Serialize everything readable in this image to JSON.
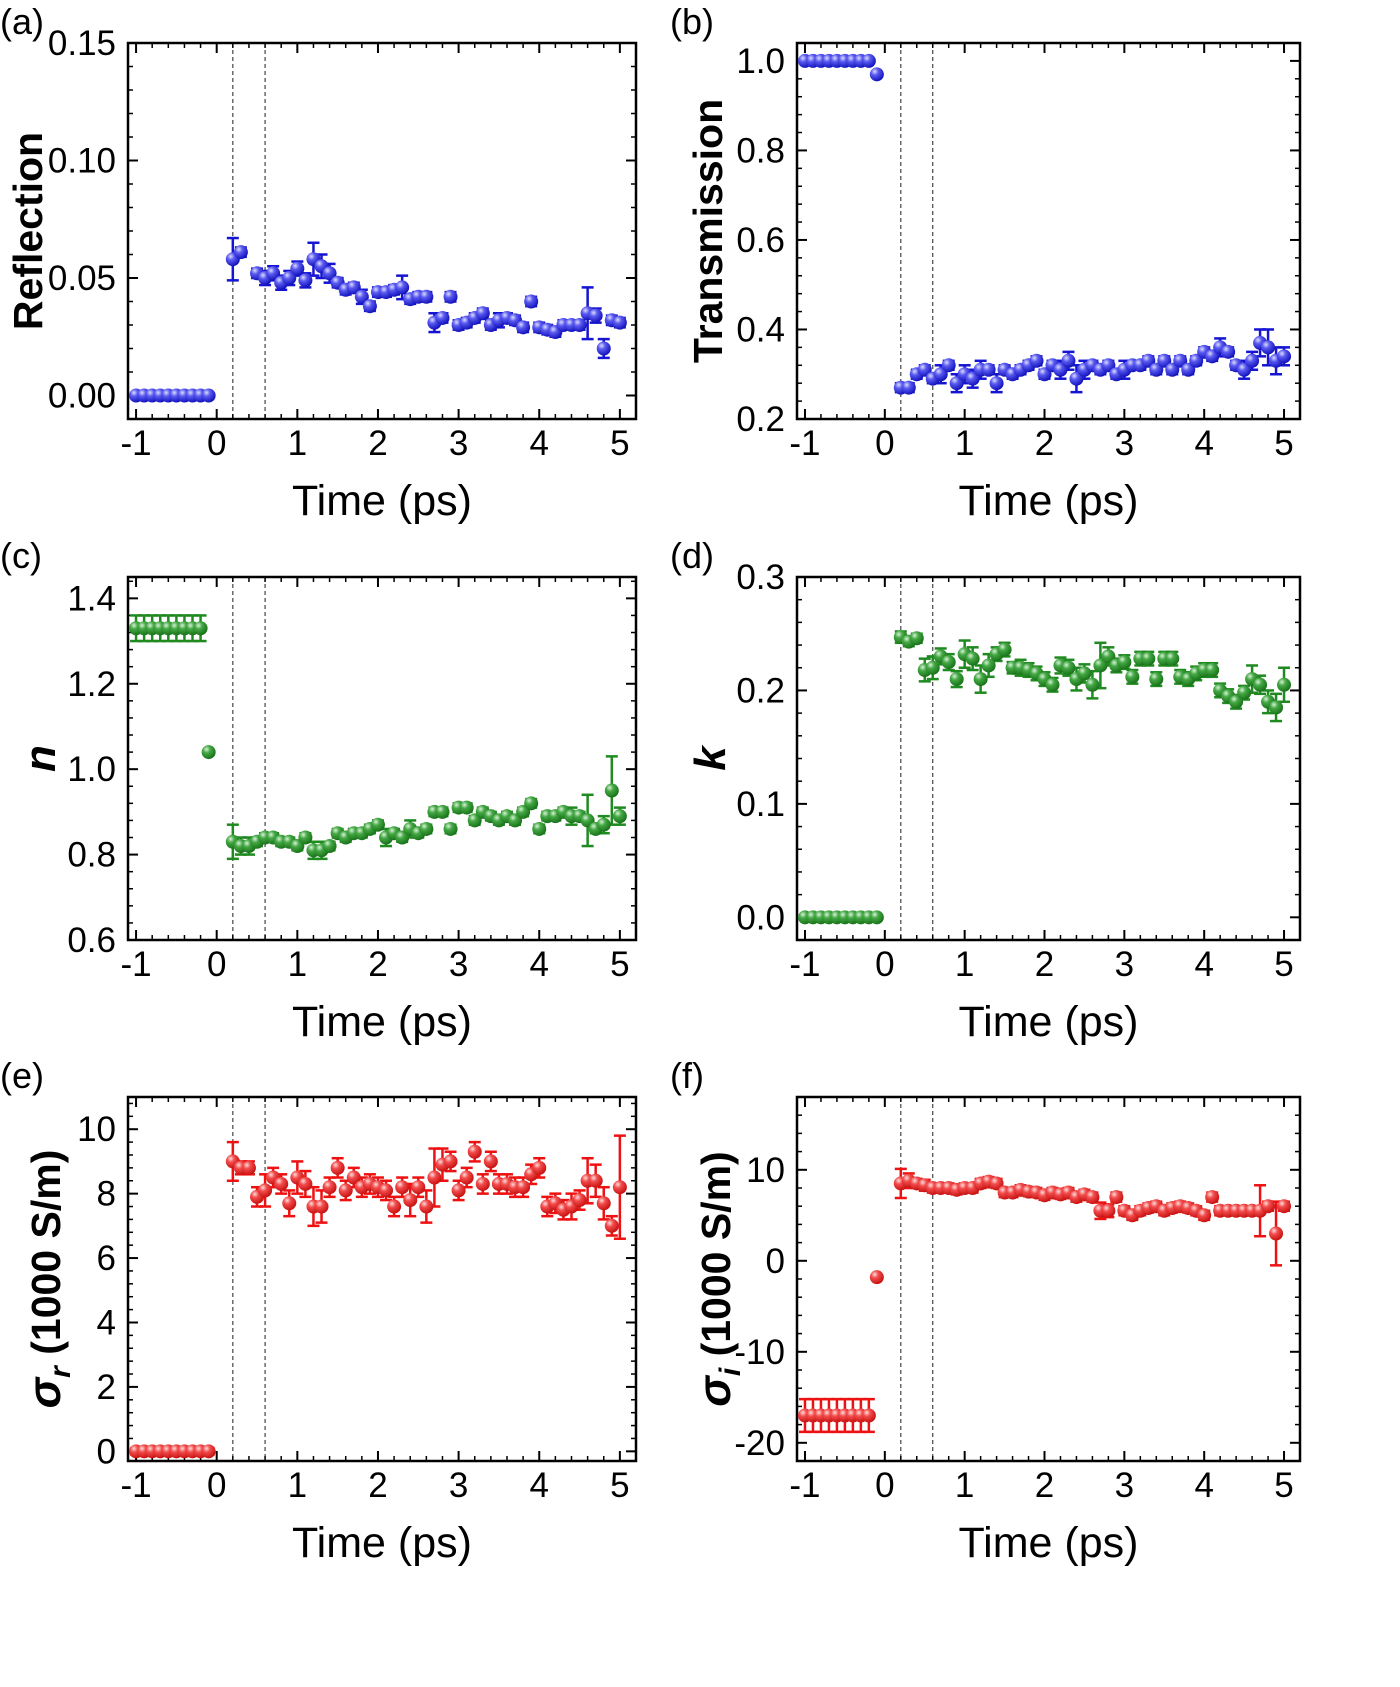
{
  "figure": {
    "colors": {
      "blue": "#1414d2",
      "green": "#1f8a1f",
      "red": "#ee1111",
      "axis": "#000000",
      "marker_line": "#8c8c8c"
    }
  },
  "chart_data": [
    {
      "panel": "(a)",
      "type": "scatter",
      "color": "blue",
      "xlabel": "Time (ps)",
      "ylabel": "Reflection",
      "xlim": [
        -1.1,
        5.2
      ],
      "ylim": [
        -0.01,
        0.15
      ],
      "xticks": [
        -1,
        0,
        1,
        2,
        3,
        4,
        5
      ],
      "xtick_labels": [
        "-1",
        "0",
        "1",
        "2",
        "3",
        "4",
        "5"
      ],
      "yticks": [
        0,
        0.05,
        0.1,
        0.15
      ],
      "ytick_labels": [
        "0.00",
        "0.05",
        "0.10",
        "0.15"
      ],
      "marker_lines": [
        0.2,
        0.6
      ],
      "x": [
        -1.0,
        -0.9,
        -0.8,
        -0.7,
        -0.6,
        -0.5,
        -0.4,
        -0.3,
        -0.2,
        -0.1,
        0.2,
        0.3,
        0.5,
        0.6,
        0.7,
        0.8,
        0.9,
        1.0,
        1.1,
        1.2,
        1.3,
        1.4,
        1.5,
        1.6,
        1.7,
        1.8,
        1.9,
        2.0,
        2.1,
        2.2,
        2.3,
        2.4,
        2.5,
        2.6,
        2.7,
        2.8,
        2.9,
        3.0,
        3.1,
        3.2,
        3.3,
        3.4,
        3.5,
        3.6,
        3.7,
        3.8,
        3.9,
        4.0,
        4.1,
        4.2,
        4.3,
        4.4,
        4.5,
        4.6,
        4.7,
        4.8,
        4.9,
        5.0
      ],
      "y": [
        0.0,
        0.0,
        0.0,
        0.0,
        0.0,
        0.0,
        0.0,
        0.0,
        0.0,
        0.0,
        0.058,
        0.061,
        0.052,
        0.05,
        0.052,
        0.048,
        0.05,
        0.054,
        0.049,
        0.058,
        0.055,
        0.052,
        0.048,
        0.045,
        0.046,
        0.042,
        0.038,
        0.044,
        0.044,
        0.045,
        0.046,
        0.041,
        0.042,
        0.042,
        0.031,
        0.033,
        0.042,
        0.03,
        0.031,
        0.033,
        0.035,
        0.03,
        0.032,
        0.033,
        0.032,
        0.029,
        0.04,
        0.029,
        0.028,
        0.027,
        0.03,
        0.03,
        0.03,
        0.035,
        0.034,
        0.02,
        0.032,
        0.031
      ],
      "err": [
        0.0,
        0.0,
        0.0,
        0.0,
        0.0,
        0.0,
        0.0,
        0.0,
        0.0,
        0.0,
        0.009,
        0.002,
        0.002,
        0.003,
        0.003,
        0.003,
        0.003,
        0.003,
        0.003,
        0.007,
        0.005,
        0.004,
        0.002,
        0.002,
        0.002,
        0.003,
        0.002,
        0.002,
        0.002,
        0.002,
        0.005,
        0.002,
        0.002,
        0.002,
        0.004,
        0.002,
        0.002,
        0.002,
        0.002,
        0.002,
        0.002,
        0.002,
        0.003,
        0.002,
        0.002,
        0.002,
        0.002,
        0.002,
        0.002,
        0.002,
        0.002,
        0.002,
        0.002,
        0.011,
        0.003,
        0.004,
        0.002,
        0.002
      ]
    },
    {
      "panel": "(b)",
      "type": "scatter",
      "color": "blue",
      "xlabel": "Time (ps)",
      "ylabel": "Transmission",
      "xlim": [
        -1.1,
        5.2
      ],
      "ylim": [
        0.2,
        1.04
      ],
      "xticks": [
        -1,
        0,
        1,
        2,
        3,
        4,
        5
      ],
      "xtick_labels": [
        "-1",
        "0",
        "1",
        "2",
        "3",
        "4",
        "5"
      ],
      "yticks": [
        0.2,
        0.4,
        0.6,
        0.8,
        1.0
      ],
      "ytick_labels": [
        "0.2",
        "0.4",
        "0.6",
        "0.8",
        "1.0"
      ],
      "marker_lines": [
        0.2,
        0.6
      ],
      "x": [
        -1.0,
        -0.9,
        -0.8,
        -0.7,
        -0.6,
        -0.5,
        -0.4,
        -0.3,
        -0.2,
        -0.1,
        0.2,
        0.3,
        0.4,
        0.5,
        0.6,
        0.7,
        0.8,
        0.9,
        1.0,
        1.1,
        1.2,
        1.3,
        1.4,
        1.5,
        1.6,
        1.7,
        1.8,
        1.9,
        2.0,
        2.1,
        2.2,
        2.3,
        2.4,
        2.5,
        2.6,
        2.7,
        2.8,
        2.9,
        3.0,
        3.1,
        3.2,
        3.3,
        3.4,
        3.5,
        3.6,
        3.7,
        3.8,
        3.9,
        4.0,
        4.1,
        4.2,
        4.3,
        4.4,
        4.5,
        4.6,
        4.7,
        4.8,
        4.9,
        5.0
      ],
      "y": [
        1.0,
        1.0,
        1.0,
        1.0,
        1.0,
        1.0,
        1.0,
        1.0,
        1.0,
        0.97,
        0.27,
        0.27,
        0.3,
        0.31,
        0.29,
        0.3,
        0.32,
        0.28,
        0.3,
        0.29,
        0.31,
        0.31,
        0.28,
        0.31,
        0.3,
        0.31,
        0.32,
        0.33,
        0.3,
        0.32,
        0.31,
        0.33,
        0.29,
        0.31,
        0.32,
        0.31,
        0.32,
        0.3,
        0.31,
        0.32,
        0.32,
        0.33,
        0.31,
        0.33,
        0.31,
        0.33,
        0.31,
        0.33,
        0.35,
        0.34,
        0.36,
        0.35,
        0.32,
        0.31,
        0.33,
        0.37,
        0.36,
        0.33,
        0.34
      ],
      "err": [
        0.0,
        0.0,
        0.0,
        0.0,
        0.0,
        0.0,
        0.0,
        0.0,
        0.0,
        0.0,
        0.01,
        0.01,
        0.01,
        0.01,
        0.01,
        0.02,
        0.01,
        0.02,
        0.02,
        0.02,
        0.02,
        0.01,
        0.02,
        0.01,
        0.01,
        0.01,
        0.01,
        0.01,
        0.01,
        0.01,
        0.02,
        0.02,
        0.03,
        0.02,
        0.01,
        0.01,
        0.01,
        0.01,
        0.02,
        0.01,
        0.01,
        0.01,
        0.01,
        0.01,
        0.01,
        0.01,
        0.01,
        0.01,
        0.01,
        0.01,
        0.02,
        0.01,
        0.01,
        0.02,
        0.02,
        0.03,
        0.04,
        0.03,
        0.02
      ]
    },
    {
      "panel": "(c)",
      "type": "scatter",
      "color": "green",
      "xlabel": "Time (ps)",
      "ylabel": "n",
      "xlim": [
        -1.1,
        5.2
      ],
      "ylim": [
        0.6,
        1.45
      ],
      "xticks": [
        -1,
        0,
        1,
        2,
        3,
        4,
        5
      ],
      "xtick_labels": [
        "-1",
        "0",
        "1",
        "2",
        "3",
        "4",
        "5"
      ],
      "yticks": [
        0.6,
        0.8,
        1.0,
        1.2,
        1.4
      ],
      "ytick_labels": [
        "0.6",
        "0.8",
        "1.0",
        "1.2",
        "1.4"
      ],
      "marker_lines": [
        0.2,
        0.6
      ],
      "x": [
        -1.0,
        -0.9,
        -0.8,
        -0.7,
        -0.6,
        -0.5,
        -0.4,
        -0.3,
        -0.2,
        -0.1,
        0.2,
        0.3,
        0.4,
        0.5,
        0.6,
        0.7,
        0.8,
        0.9,
        1.0,
        1.1,
        1.2,
        1.3,
        1.4,
        1.5,
        1.6,
        1.7,
        1.8,
        1.9,
        2.0,
        2.1,
        2.2,
        2.3,
        2.4,
        2.5,
        2.6,
        2.7,
        2.8,
        2.9,
        3.0,
        3.1,
        3.2,
        3.3,
        3.4,
        3.5,
        3.6,
        3.7,
        3.8,
        3.9,
        4.0,
        4.1,
        4.2,
        4.3,
        4.4,
        4.5,
        4.6,
        4.7,
        4.8,
        4.9,
        5.0
      ],
      "y": [
        1.33,
        1.33,
        1.33,
        1.33,
        1.33,
        1.33,
        1.33,
        1.33,
        1.33,
        1.04,
        0.83,
        0.82,
        0.82,
        0.83,
        0.84,
        0.84,
        0.83,
        0.83,
        0.82,
        0.84,
        0.81,
        0.81,
        0.82,
        0.85,
        0.84,
        0.85,
        0.85,
        0.86,
        0.87,
        0.84,
        0.85,
        0.84,
        0.86,
        0.85,
        0.86,
        0.9,
        0.9,
        0.86,
        0.91,
        0.91,
        0.88,
        0.9,
        0.89,
        0.88,
        0.89,
        0.88,
        0.9,
        0.92,
        0.86,
        0.89,
        0.89,
        0.9,
        0.89,
        0.89,
        0.88,
        0.86,
        0.87,
        0.95,
        0.89
      ],
      "err": [
        0.03,
        0.03,
        0.03,
        0.03,
        0.03,
        0.03,
        0.03,
        0.03,
        0.03,
        0.0,
        0.04,
        0.02,
        0.02,
        0.01,
        0.01,
        0.01,
        0.01,
        0.01,
        0.01,
        0.01,
        0.02,
        0.02,
        0.01,
        0.01,
        0.01,
        0.01,
        0.01,
        0.01,
        0.01,
        0.02,
        0.01,
        0.01,
        0.02,
        0.01,
        0.01,
        0.01,
        0.01,
        0.01,
        0.01,
        0.01,
        0.01,
        0.01,
        0.01,
        0.01,
        0.01,
        0.01,
        0.01,
        0.01,
        0.01,
        0.01,
        0.01,
        0.01,
        0.02,
        0.01,
        0.06,
        0.01,
        0.02,
        0.08,
        0.02
      ]
    },
    {
      "panel": "(d)",
      "type": "scatter",
      "color": "green",
      "xlabel": "Time (ps)",
      "ylabel": "k",
      "xlim": [
        -1.1,
        5.2
      ],
      "ylim": [
        -0.02,
        0.3
      ],
      "xticks": [
        -1,
        0,
        1,
        2,
        3,
        4,
        5
      ],
      "xtick_labels": [
        "-1",
        "0",
        "1",
        "2",
        "3",
        "4",
        "5"
      ],
      "yticks": [
        0.0,
        0.1,
        0.2,
        0.3
      ],
      "ytick_labels": [
        "0.0",
        "0.1",
        "0.2",
        "0.3"
      ],
      "marker_lines": [
        0.2,
        0.6
      ],
      "x": [
        -1.0,
        -0.9,
        -0.8,
        -0.7,
        -0.6,
        -0.5,
        -0.4,
        -0.3,
        -0.2,
        -0.1,
        0.2,
        0.3,
        0.4,
        0.5,
        0.6,
        0.7,
        0.8,
        0.9,
        1.0,
        1.1,
        1.2,
        1.3,
        1.4,
        1.5,
        1.6,
        1.7,
        1.8,
        1.9,
        2.0,
        2.1,
        2.2,
        2.3,
        2.4,
        2.5,
        2.6,
        2.7,
        2.8,
        2.9,
        3.0,
        3.1,
        3.2,
        3.3,
        3.4,
        3.5,
        3.6,
        3.7,
        3.8,
        3.9,
        4.0,
        4.1,
        4.2,
        4.3,
        4.4,
        4.5,
        4.6,
        4.7,
        4.8,
        4.9,
        5.0
      ],
      "y": [
        0.0,
        0.0,
        0.0,
        0.0,
        0.0,
        0.0,
        0.0,
        0.0,
        0.0,
        0.0,
        0.247,
        0.243,
        0.246,
        0.218,
        0.22,
        0.23,
        0.225,
        0.21,
        0.232,
        0.228,
        0.21,
        0.222,
        0.232,
        0.236,
        0.22,
        0.22,
        0.218,
        0.215,
        0.21,
        0.205,
        0.222,
        0.22,
        0.21,
        0.215,
        0.205,
        0.222,
        0.23,
        0.222,
        0.225,
        0.212,
        0.228,
        0.228,
        0.21,
        0.228,
        0.228,
        0.212,
        0.21,
        0.215,
        0.218,
        0.218,
        0.2,
        0.195,
        0.19,
        0.198,
        0.21,
        0.205,
        0.19,
        0.185,
        0.205
      ],
      "err": [
        0.0,
        0.0,
        0.0,
        0.0,
        0.0,
        0.0,
        0.0,
        0.0,
        0.0,
        0.0,
        0.005,
        0.004,
        0.004,
        0.01,
        0.01,
        0.007,
        0.007,
        0.007,
        0.012,
        0.01,
        0.012,
        0.01,
        0.006,
        0.006,
        0.005,
        0.007,
        0.006,
        0.006,
        0.006,
        0.006,
        0.007,
        0.007,
        0.01,
        0.008,
        0.012,
        0.02,
        0.008,
        0.006,
        0.006,
        0.006,
        0.006,
        0.006,
        0.006,
        0.006,
        0.006,
        0.006,
        0.006,
        0.006,
        0.006,
        0.006,
        0.006,
        0.006,
        0.006,
        0.006,
        0.012,
        0.008,
        0.01,
        0.012,
        0.015
      ]
    },
    {
      "panel": "(e)",
      "type": "scatter",
      "color": "red",
      "xlabel": "Time (ps)",
      "ylabel": "σr (1000 S/m)",
      "ylabel_parts": {
        "symbol": "σ",
        "subscript": "r",
        "rest": " (1000 S/m)"
      },
      "xlim": [
        -1.1,
        5.2
      ],
      "ylim": [
        -0.3,
        11
      ],
      "xticks": [
        -1,
        0,
        1,
        2,
        3,
        4,
        5
      ],
      "xtick_labels": [
        "-1",
        "0",
        "1",
        "2",
        "3",
        "4",
        "5"
      ],
      "yticks": [
        0,
        2,
        4,
        6,
        8,
        10
      ],
      "ytick_labels": [
        "0",
        "2",
        "4",
        "6",
        "8",
        "10"
      ],
      "marker_lines": [
        0.2,
        0.6
      ],
      "x": [
        -1.0,
        -0.9,
        -0.8,
        -0.7,
        -0.6,
        -0.5,
        -0.4,
        -0.3,
        -0.2,
        -0.1,
        0.2,
        0.3,
        0.4,
        0.5,
        0.6,
        0.7,
        0.8,
        0.9,
        1.0,
        1.1,
        1.2,
        1.3,
        1.4,
        1.5,
        1.6,
        1.7,
        1.8,
        1.9,
        2.0,
        2.1,
        2.2,
        2.3,
        2.4,
        2.5,
        2.6,
        2.7,
        2.8,
        2.9,
        3.0,
        3.1,
        3.2,
        3.3,
        3.4,
        3.5,
        3.6,
        3.7,
        3.8,
        3.9,
        4.0,
        4.1,
        4.2,
        4.3,
        4.4,
        4.5,
        4.6,
        4.7,
        4.8,
        4.9,
        5.0
      ],
      "y": [
        0.0,
        0.0,
        0.0,
        0.0,
        0.0,
        0.0,
        0.0,
        0.0,
        0.0,
        0.0,
        9.0,
        8.8,
        8.8,
        7.9,
        8.1,
        8.5,
        8.3,
        7.7,
        8.5,
        8.3,
        7.6,
        7.6,
        8.2,
        8.8,
        8.1,
        8.5,
        8.2,
        8.3,
        8.2,
        8.1,
        7.6,
        8.2,
        7.8,
        8.2,
        7.6,
        8.5,
        8.9,
        9.0,
        8.1,
        8.5,
        9.3,
        8.3,
        9.0,
        8.3,
        8.3,
        8.2,
        8.2,
        8.6,
        8.8,
        7.6,
        7.7,
        7.5,
        7.6,
        7.8,
        8.4,
        8.4,
        7.7,
        7.0,
        8.2
      ],
      "err": [
        0.1,
        0.1,
        0.1,
        0.1,
        0.1,
        0.1,
        0.1,
        0.1,
        0.1,
        0.1,
        0.6,
        0.2,
        0.2,
        0.3,
        0.5,
        0.3,
        0.3,
        0.4,
        0.5,
        0.4,
        0.6,
        0.5,
        0.3,
        0.3,
        0.3,
        0.3,
        0.3,
        0.3,
        0.3,
        0.3,
        0.3,
        0.3,
        0.5,
        0.3,
        0.5,
        0.9,
        0.5,
        0.3,
        0.3,
        0.3,
        0.3,
        0.3,
        0.3,
        0.3,
        0.3,
        0.3,
        0.3,
        0.3,
        0.3,
        0.3,
        0.3,
        0.3,
        0.4,
        0.3,
        0.7,
        0.5,
        0.5,
        0.3,
        1.6
      ]
    },
    {
      "panel": "(f)",
      "type": "scatter",
      "color": "red",
      "xlabel": "Time (ps)",
      "ylabel": "σi (1000 S/m)",
      "ylabel_parts": {
        "symbol": "σ",
        "subscript": "i",
        "rest": " (1000 S/m)"
      },
      "xlim": [
        -1.1,
        5.2
      ],
      "ylim": [
        -22,
        18
      ],
      "xticks": [
        -1,
        0,
        1,
        2,
        3,
        4,
        5
      ],
      "xtick_labels": [
        "-1",
        "0",
        "1",
        "2",
        "3",
        "4",
        "5"
      ],
      "yticks": [
        -20,
        -10,
        0,
        10
      ],
      "ytick_labels": [
        "-20",
        "-10",
        "0",
        "10"
      ],
      "marker_lines": [
        0.2,
        0.6
      ],
      "x": [
        -1.0,
        -0.9,
        -0.8,
        -0.7,
        -0.6,
        -0.5,
        -0.4,
        -0.3,
        -0.2,
        -0.1,
        0.2,
        0.3,
        0.4,
        0.5,
        0.6,
        0.7,
        0.8,
        0.9,
        1.0,
        1.1,
        1.2,
        1.3,
        1.4,
        1.5,
        1.6,
        1.7,
        1.8,
        1.9,
        2.0,
        2.1,
        2.2,
        2.3,
        2.4,
        2.5,
        2.6,
        2.7,
        2.8,
        2.9,
        3.0,
        3.1,
        3.2,
        3.3,
        3.4,
        3.5,
        3.6,
        3.7,
        3.8,
        3.9,
        4.0,
        4.1,
        4.2,
        4.3,
        4.4,
        4.5,
        4.6,
        4.7,
        4.8,
        4.9,
        5.0
      ],
      "y": [
        -17.0,
        -17.0,
        -17.0,
        -17.0,
        -17.0,
        -17.0,
        -17.0,
        -17.0,
        -17.0,
        -1.8,
        8.5,
        8.8,
        8.5,
        8.3,
        8.0,
        8.0,
        8.0,
        7.8,
        8.0,
        8.0,
        8.5,
        8.7,
        8.5,
        7.5,
        7.5,
        7.8,
        7.6,
        7.5,
        7.2,
        7.5,
        7.3,
        7.5,
        7.0,
        7.3,
        7.0,
        5.5,
        5.5,
        7.0,
        5.5,
        5.0,
        5.5,
        5.8,
        6.0,
        5.5,
        5.8,
        6.0,
        5.8,
        5.5,
        5.0,
        7.0,
        5.5,
        5.5,
        5.5,
        5.5,
        5.5,
        5.5,
        6.0,
        3.0,
        6.0
      ],
      "err": [
        1.8,
        1.8,
        1.8,
        1.8,
        1.8,
        1.8,
        1.8,
        1.8,
        1.8,
        0.0,
        1.6,
        0.8,
        0.5,
        0.6,
        0.5,
        0.5,
        0.5,
        0.5,
        0.5,
        0.5,
        0.5,
        0.5,
        0.5,
        0.5,
        0.5,
        0.5,
        0.5,
        0.5,
        0.5,
        0.5,
        0.5,
        0.5,
        0.5,
        0.5,
        0.5,
        0.9,
        0.7,
        0.5,
        0.5,
        0.5,
        0.5,
        0.5,
        0.5,
        0.5,
        0.5,
        0.5,
        0.5,
        0.5,
        0.5,
        0.5,
        0.5,
        0.5,
        0.5,
        0.5,
        0.5,
        2.8,
        0.5,
        3.5,
        0.5
      ]
    }
  ]
}
